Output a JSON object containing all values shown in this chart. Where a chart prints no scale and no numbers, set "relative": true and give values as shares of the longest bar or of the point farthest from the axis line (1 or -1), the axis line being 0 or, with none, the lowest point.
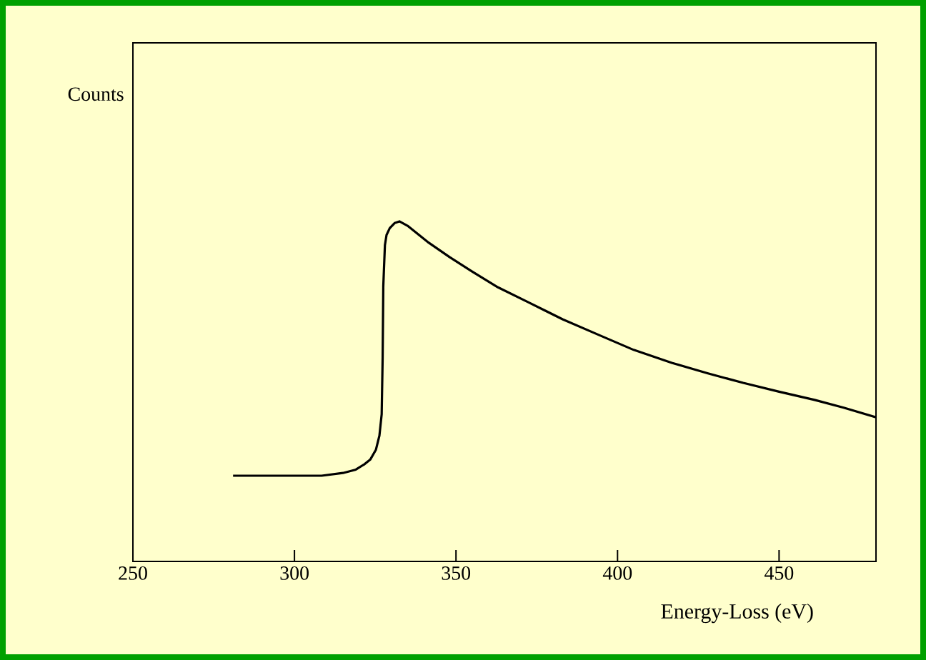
{
  "chart_data": {
    "type": "line",
    "relative": true,
    "xlabel": "Energy-Loss (eV)",
    "annotations": [
      "Counts"
    ],
    "xlim": [
      250,
      480
    ],
    "xticks": [
      250,
      300,
      350,
      400,
      450
    ],
    "grid": false,
    "marker": "none",
    "line_style": "solid",
    "series": [
      {
        "color": "#000000",
        "x": [
          281,
          308.4,
          315,
          319,
          321.7,
          323.5,
          325.2,
          326.3,
          327,
          327.3,
          327.5,
          328,
          328.5,
          329.5,
          331,
          332.5,
          335,
          341.6,
          348,
          354.9,
          363,
          372.6,
          383,
          394.7,
          405,
          416.8,
          428,
          438.9,
          450,
          461,
          470,
          480
        ],
        "values": [
          0.252,
          0.252,
          0.26,
          0.27,
          0.286,
          0.3,
          0.328,
          0.37,
          0.433,
          0.6,
          0.81,
          0.93,
          0.96,
          0.98,
          0.995,
          1,
          0.987,
          0.937,
          0.895,
          0.853,
          0.806,
          0.761,
          0.712,
          0.664,
          0.622,
          0.584,
          0.553,
          0.525,
          0.499,
          0.475,
          0.452,
          0.424
        ]
      }
    ]
  }
}
